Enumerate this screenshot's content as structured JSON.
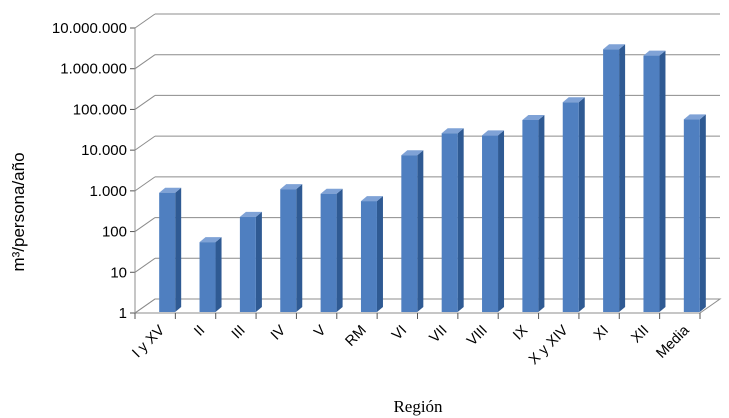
{
  "chart_data": {
    "type": "bar",
    "title": "",
    "xlabel": "Región",
    "ylabel": "m³/persona/año",
    "scale": "log10",
    "ylim": [
      1,
      10000000
    ],
    "yticks": [
      {
        "value": 1,
        "label": "1"
      },
      {
        "value": 10,
        "label": "10"
      },
      {
        "value": 100,
        "label": "100"
      },
      {
        "value": 1000,
        "label": "1.000"
      },
      {
        "value": 10000,
        "label": "10.000"
      },
      {
        "value": 100000,
        "label": "100.000"
      },
      {
        "value": 1000000,
        "label": "1.000.000"
      },
      {
        "value": 10000000,
        "label": "10.000.000"
      }
    ],
    "categories": [
      "I y XV",
      "II",
      "III",
      "IV",
      "V",
      "RM",
      "VI",
      "VII",
      "VIII",
      "IX",
      "X y XIV",
      "XI",
      "XII",
      "Media"
    ],
    "values": [
      900,
      55,
      230,
      1100,
      850,
      560,
      7500,
      26000,
      23000,
      55000,
      150000,
      3000000,
      2100000,
      57000
    ],
    "grid": true,
    "bar_color": "#4F7FC0"
  }
}
